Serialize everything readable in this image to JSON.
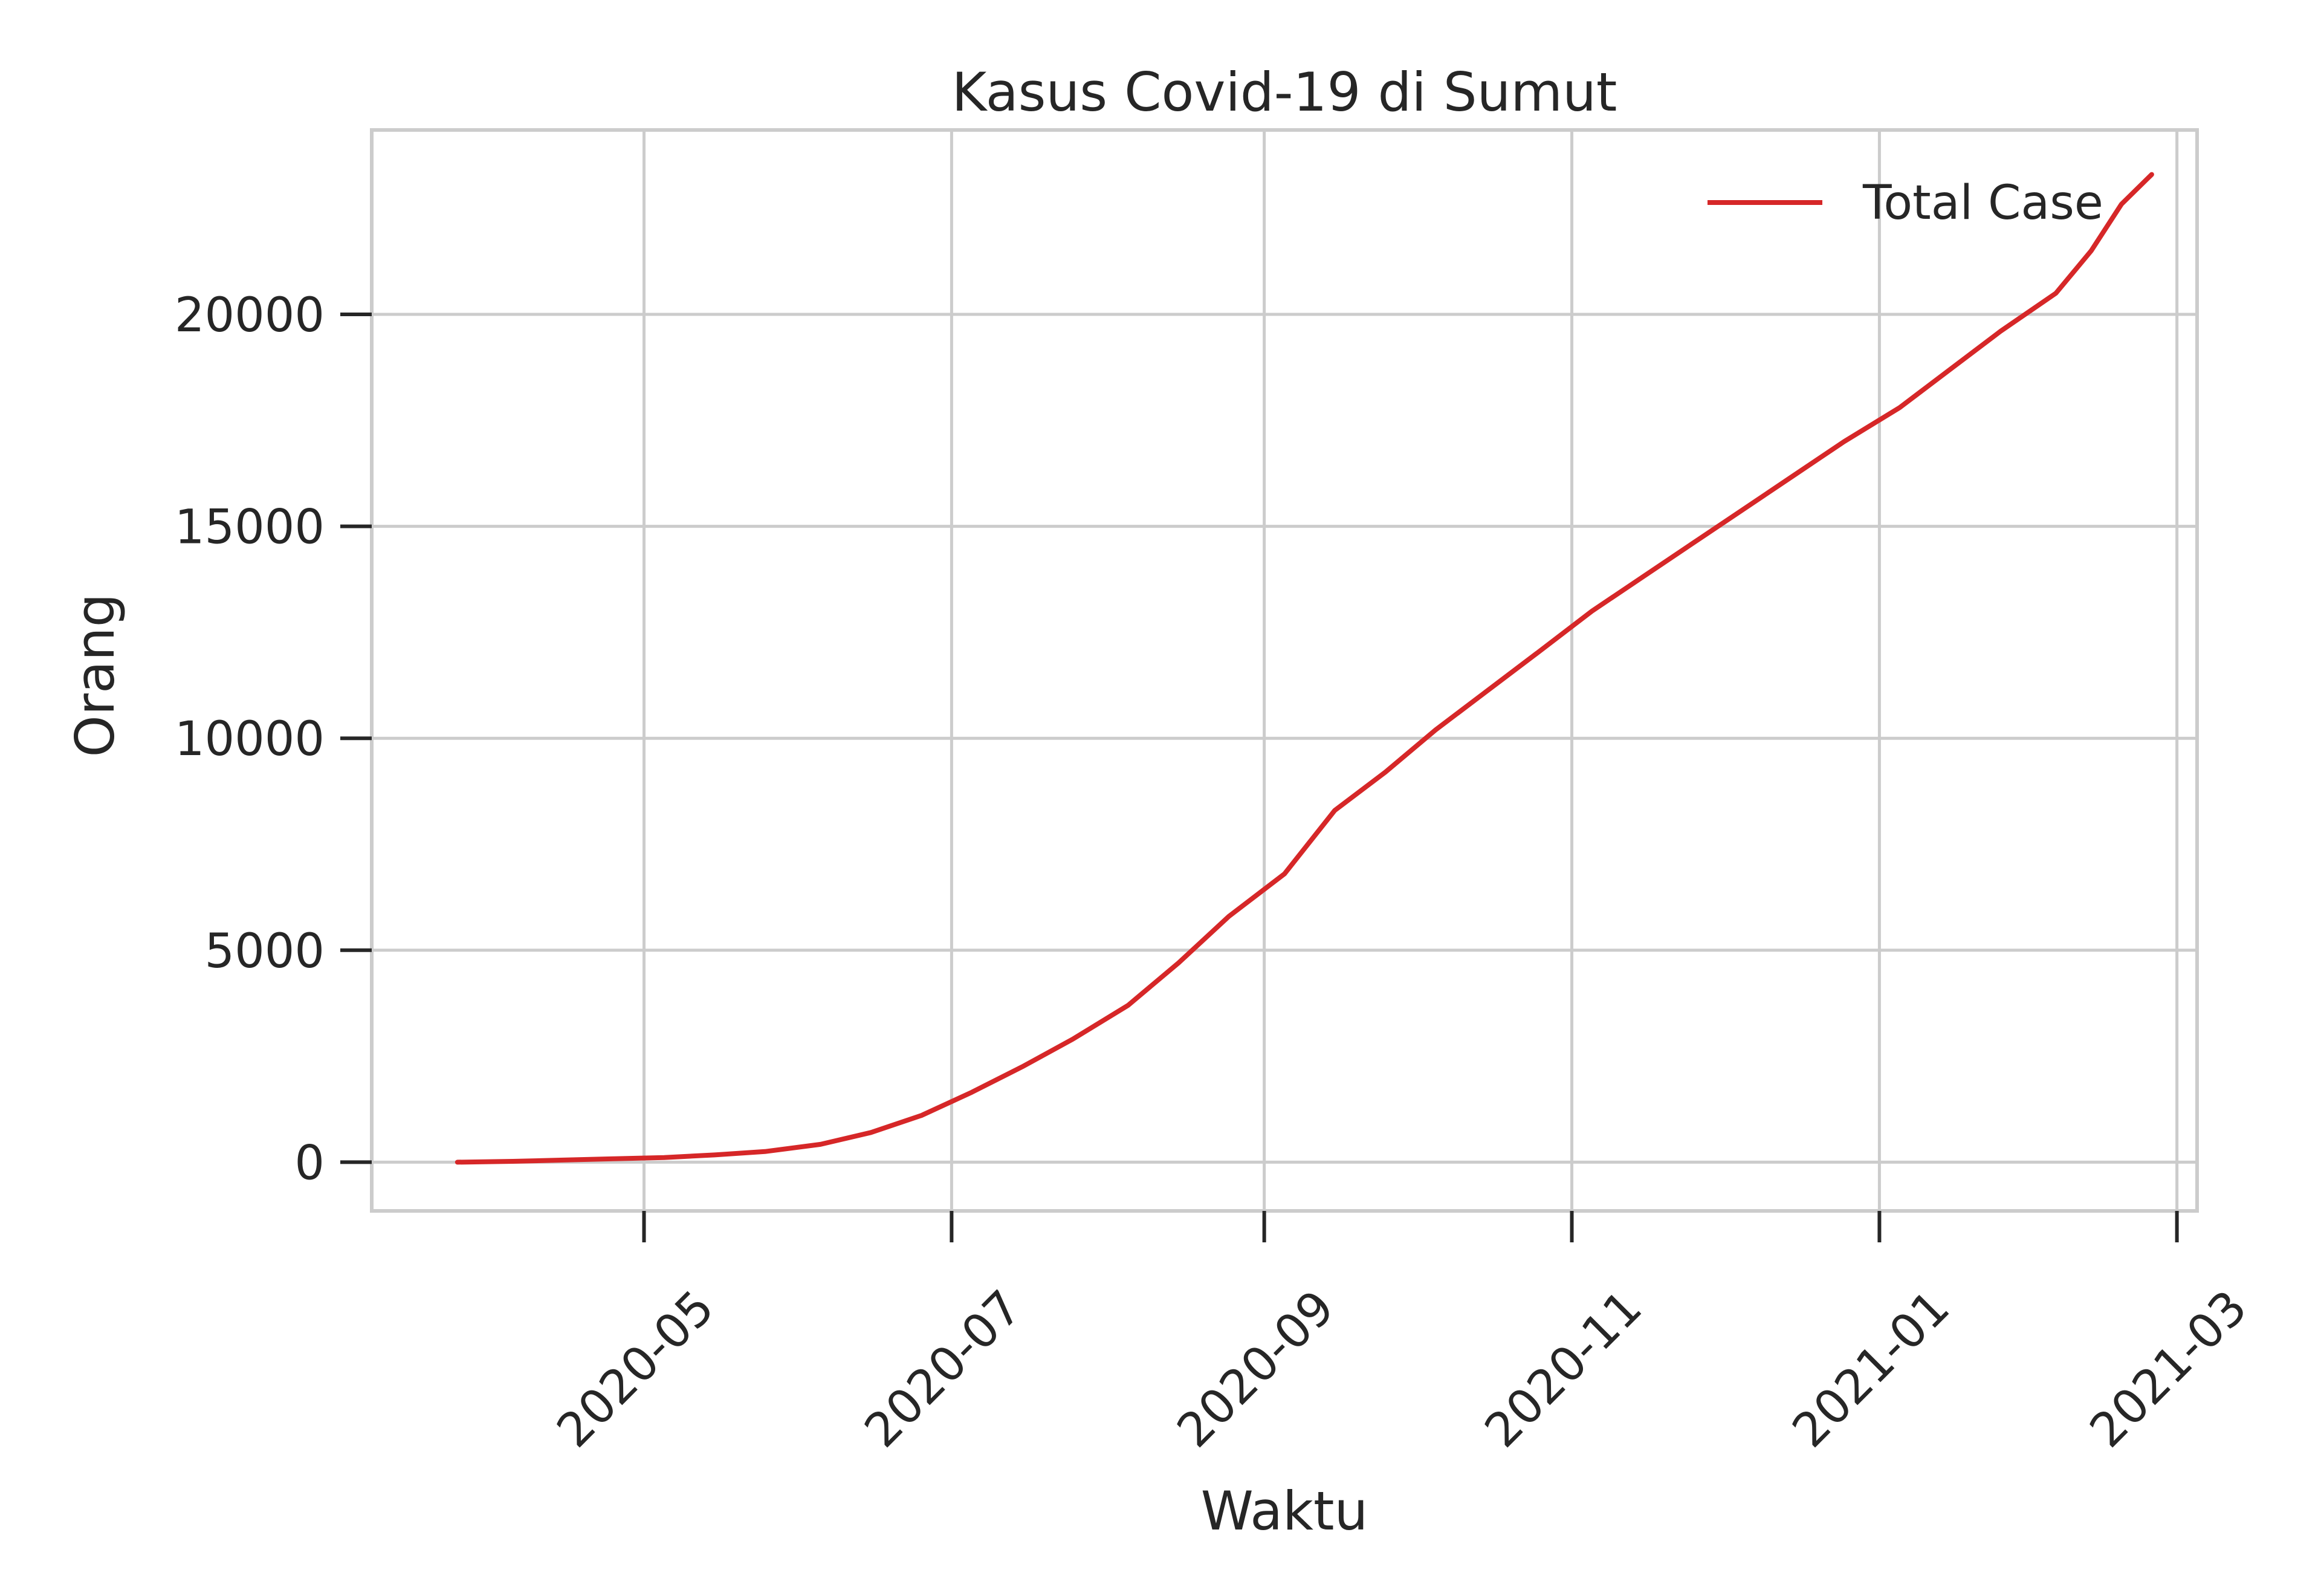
{
  "chart_data": {
    "type": "line",
    "title": "Kasus Covid-19 di Sumut",
    "xlabel": "Waktu",
    "ylabel": "Orang",
    "x_axis_type": "date",
    "xlim": [
      "2020-03-08",
      "2021-03-05"
    ],
    "ylim": [
      -1150,
      24350
    ],
    "grid": true,
    "legend_position": "top-right",
    "x_ticks": [
      "2020-05",
      "2020-07",
      "2020-09",
      "2020-11",
      "2021-01",
      "2021-03"
    ],
    "y_ticks": [
      0,
      5000,
      10000,
      15000,
      20000
    ],
    "series": [
      {
        "name": "Total Case",
        "color": "#d62728",
        "points": [
          [
            "2020-03-25",
            0
          ],
          [
            "2020-04-05",
            20
          ],
          [
            "2020-04-15",
            50
          ],
          [
            "2020-04-25",
            80
          ],
          [
            "2020-05-05",
            110
          ],
          [
            "2020-05-15",
            170
          ],
          [
            "2020-05-25",
            250
          ],
          [
            "2020-06-05",
            420
          ],
          [
            "2020-06-15",
            700
          ],
          [
            "2020-06-25",
            1100
          ],
          [
            "2020-07-05",
            1650
          ],
          [
            "2020-07-15",
            2250
          ],
          [
            "2020-07-25",
            2900
          ],
          [
            "2020-08-05",
            3700
          ],
          [
            "2020-08-15",
            4700
          ],
          [
            "2020-08-25",
            5800
          ],
          [
            "2020-09-05",
            6800
          ],
          [
            "2020-09-15",
            8300
          ],
          [
            "2020-09-25",
            9200
          ],
          [
            "2020-10-05",
            10200
          ],
          [
            "2020-10-15",
            11100
          ],
          [
            "2020-10-25",
            12000
          ],
          [
            "2020-11-05",
            13000
          ],
          [
            "2020-11-15",
            13800
          ],
          [
            "2020-11-25",
            14600
          ],
          [
            "2020-12-05",
            15400
          ],
          [
            "2020-12-15",
            16200
          ],
          [
            "2020-12-25",
            17000
          ],
          [
            "2021-01-05",
            17800
          ],
          [
            "2021-01-15",
            18700
          ],
          [
            "2021-01-25",
            19600
          ],
          [
            "2021-02-05",
            20500
          ],
          [
            "2021-02-12",
            21500
          ],
          [
            "2021-02-18",
            22600
          ],
          [
            "2021-02-24",
            23300
          ]
        ]
      }
    ]
  }
}
